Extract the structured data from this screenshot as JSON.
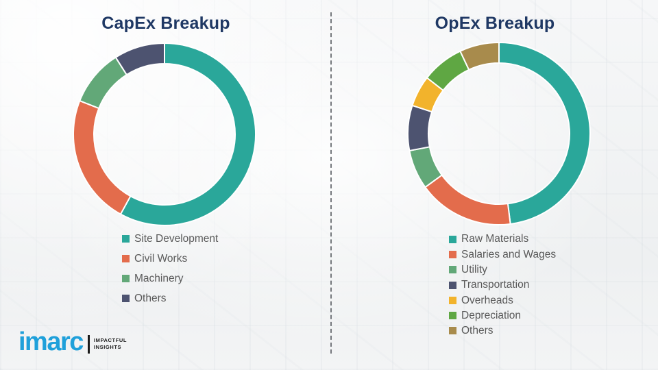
{
  "slide": {
    "background_base": "#f3f4f5",
    "divider_color": "#5d6166",
    "title_color": "#1F3864",
    "legend_text_color": "#595959"
  },
  "chart_data": [
    {
      "type": "pie",
      "donut": true,
      "title": "CapEx Breakup",
      "labels": [
        "Site Development",
        "Civil Works",
        "Machinery",
        "Others"
      ],
      "values": [
        58,
        23,
        10,
        9
      ],
      "colors": [
        "#2AA79A",
        "#E36C4C",
        "#62A878",
        "#4D5370"
      ],
      "start_angle_deg": 0,
      "direction": "clockwise",
      "legend_position": "bottom-left",
      "data_labels_shown": false
    },
    {
      "type": "pie",
      "donut": true,
      "title": "OpEx Breakup",
      "labels": [
        "Raw Materials",
        "Salaries and Wages",
        "Utility",
        "Transportation",
        "Overheads",
        "Depreciation",
        "Others"
      ],
      "values": [
        48,
        17,
        7,
        8,
        5.5,
        7.5,
        7
      ],
      "colors": [
        "#2AA79A",
        "#E36C4C",
        "#62A878",
        "#4D5370",
        "#F2B32C",
        "#5FA743",
        "#A88B4C"
      ],
      "start_angle_deg": 0,
      "direction": "clockwise",
      "legend_position": "bottom-left",
      "data_labels_shown": false
    }
  ],
  "logo": {
    "brand": "imarc",
    "tagline_line1": "IMPACTFUL",
    "tagline_line2": "INSIGHTS",
    "brand_color": "#1FA0DA",
    "tagline_color": "#1a1a1a"
  }
}
